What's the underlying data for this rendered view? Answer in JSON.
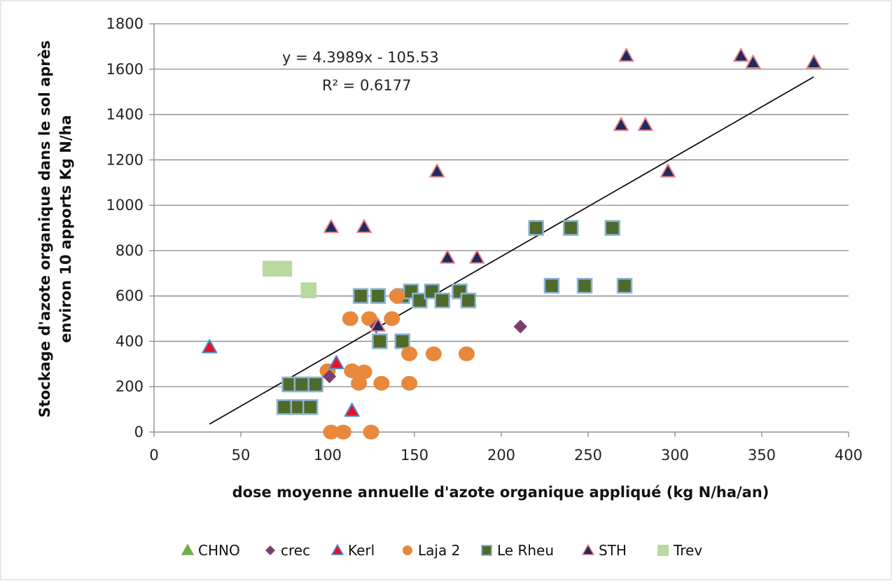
{
  "chart_data": {
    "type": "scatter",
    "title": "",
    "xlabel": "dose moyenne annuelle  d'azote organique appliqué (kg N/ha/an)",
    "ylabel_line1": "Stockage d'azote organique dans le sol après",
    "ylabel_line2": "environ 10 apports Kg N/ha",
    "xlim": [
      0,
      400
    ],
    "ylim": [
      0,
      1800
    ],
    "x_ticks": [
      0,
      50,
      100,
      150,
      200,
      250,
      300,
      350,
      400
    ],
    "y_ticks": [
      0,
      200,
      400,
      600,
      800,
      1000,
      1200,
      1400,
      1600,
      1800
    ],
    "grid": "horizontal",
    "legend_position": "bottom",
    "trendline": {
      "slope": 4.3989,
      "intercept": -105.53,
      "x_range": [
        32,
        380
      ],
      "equation": "y = 4.3989x - 105.53",
      "r2": "R² = 0.6177"
    },
    "series": [
      {
        "name": "CHNO",
        "marker": "triangle",
        "color": "#70ad47",
        "stroke": "#70ad47",
        "points": []
      },
      {
        "name": "crec",
        "marker": "diamond",
        "color": "#7b3f6e",
        "stroke": "#7b3f6e",
        "points": [
          [
            101,
            245
          ],
          [
            128,
            465
          ],
          [
            211,
            465
          ]
        ]
      },
      {
        "name": "Kerl",
        "marker": "triangle",
        "color": "#e8102a",
        "stroke": "#4a8fd0",
        "points": [
          [
            32,
            375
          ],
          [
            105,
            305
          ],
          [
            114,
            95
          ]
        ]
      },
      {
        "name": "Laja 2",
        "marker": "circle",
        "color": "#e8883c",
        "stroke": "#e8883c",
        "points": [
          [
            100,
            270
          ],
          [
            102,
            0
          ],
          [
            109,
            0
          ],
          [
            113,
            500
          ],
          [
            114,
            270
          ],
          [
            118,
            215
          ],
          [
            121,
            265
          ],
          [
            124,
            500
          ],
          [
            125,
            0
          ],
          [
            131,
            215
          ],
          [
            137,
            500
          ],
          [
            140,
            600
          ],
          [
            147,
            345
          ],
          [
            147,
            215
          ],
          [
            161,
            345
          ],
          [
            180,
            345
          ]
        ]
      },
      {
        "name": "Le Rheu",
        "marker": "square",
        "color": "#4e6b2c",
        "stroke": "#8db4d9",
        "points": [
          [
            75,
            110
          ],
          [
            83,
            110
          ],
          [
            90,
            110
          ],
          [
            78,
            210
          ],
          [
            85,
            210
          ],
          [
            93,
            210
          ],
          [
            119,
            600
          ],
          [
            129,
            600
          ],
          [
            130,
            400
          ],
          [
            143,
            400
          ],
          [
            143,
            600
          ],
          [
            148,
            620
          ],
          [
            153,
            580
          ],
          [
            160,
            620
          ],
          [
            166,
            580
          ],
          [
            176,
            620
          ],
          [
            181,
            580
          ],
          [
            220,
            900
          ],
          [
            229,
            645
          ],
          [
            240,
            900
          ],
          [
            248,
            645
          ],
          [
            264,
            900
          ],
          [
            271,
            645
          ]
        ]
      },
      {
        "name": "STH",
        "marker": "triangle",
        "color": "#1f2a5e",
        "stroke": "#e88a8a",
        "points": [
          [
            102,
            905
          ],
          [
            121,
            905
          ],
          [
            129,
            470
          ],
          [
            163,
            1150
          ],
          [
            169,
            770
          ],
          [
            186,
            770
          ],
          [
            269,
            1355
          ],
          [
            272,
            1660
          ],
          [
            283,
            1355
          ],
          [
            296,
            1150
          ],
          [
            338,
            1660
          ],
          [
            345,
            1630
          ],
          [
            380,
            1630
          ]
        ]
      },
      {
        "name": "Trev",
        "marker": "square",
        "color": "#b8d9a0",
        "stroke": "#b8d9a0",
        "points": [
          [
            67,
            720
          ],
          [
            75,
            720
          ],
          [
            89,
            625
          ]
        ]
      }
    ]
  }
}
